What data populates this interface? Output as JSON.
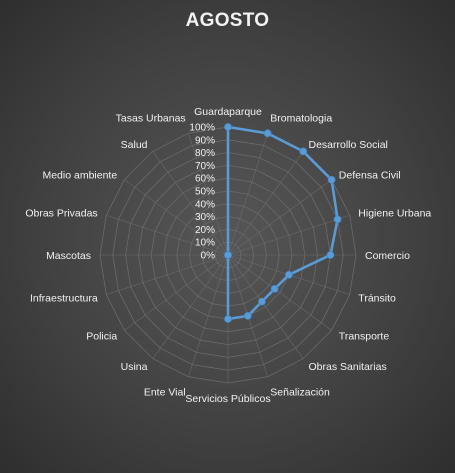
{
  "chart_data": {
    "type": "radar",
    "title": "AGOSTO",
    "categories": [
      "Guardaparque",
      "Bromatologia",
      "Desarrollo Social",
      "Defensa Civil",
      "Higiene Urbana",
      "Comercio",
      "Tránsito",
      "Transporte",
      "Obras Sanitarias",
      "Señalización",
      "Servicios Públicos",
      "Ente Vial",
      "Usina",
      "Policia",
      "Infraestructura",
      "Mascotas",
      "Obras Privadas",
      "Medio ambiente",
      "Salud",
      "Tasas Urbanas"
    ],
    "series": [
      {
        "values": [
          100,
          100,
          100,
          100,
          90,
          80,
          50,
          45,
          45,
          50,
          50,
          0,
          0,
          0,
          0,
          0,
          0,
          0,
          0,
          0
        ]
      }
    ],
    "ticks": [
      "0%",
      "10%",
      "20%",
      "30%",
      "40%",
      "50%",
      "60%",
      "70%",
      "80%",
      "90%",
      "100%"
    ],
    "rlim": [
      0,
      100
    ],
    "grid": true,
    "legend": "none",
    "colors": {
      "series": "#5b9bd5",
      "background": "#404040",
      "grid": "#6a6a6a",
      "text": "#f2f2f2"
    }
  }
}
